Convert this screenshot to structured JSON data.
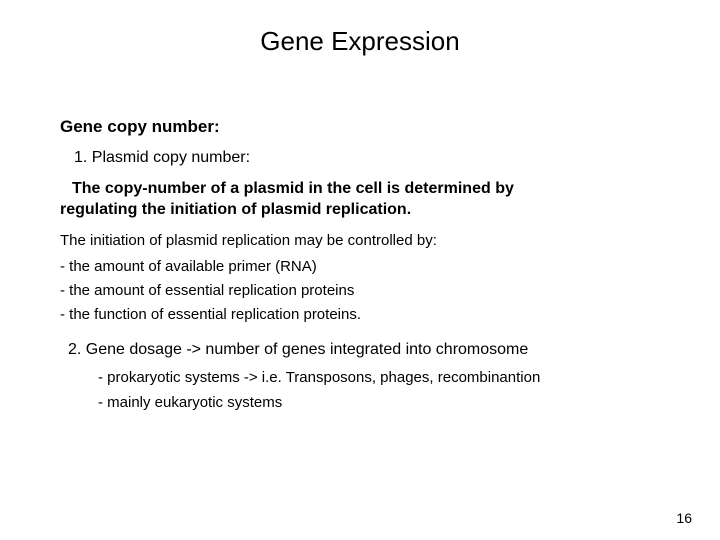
{
  "title": "Gene Expression",
  "heading": "Gene copy number:",
  "item1": "1. Plasmid copy number:",
  "body_bold_line1": "The copy-number of a plasmid in the cell is determined by",
  "body_bold_line2": "regulating the initiation of plasmid replication.",
  "body_text": "The initiation of plasmid replication may be controlled by:",
  "bullet1": "- the amount of available primer (RNA)",
  "bullet2": "- the amount of essential replication proteins",
  "bullet3": "- the function of essential replication proteins.",
  "item2": "2. Gene dosage -> number of genes integrated into chromosome",
  "sub1": "- prokaryotic systems -> i.e. Transposons, phages, recombinantion",
  "sub2": "- mainly eukaryotic systems",
  "page_number": "16"
}
